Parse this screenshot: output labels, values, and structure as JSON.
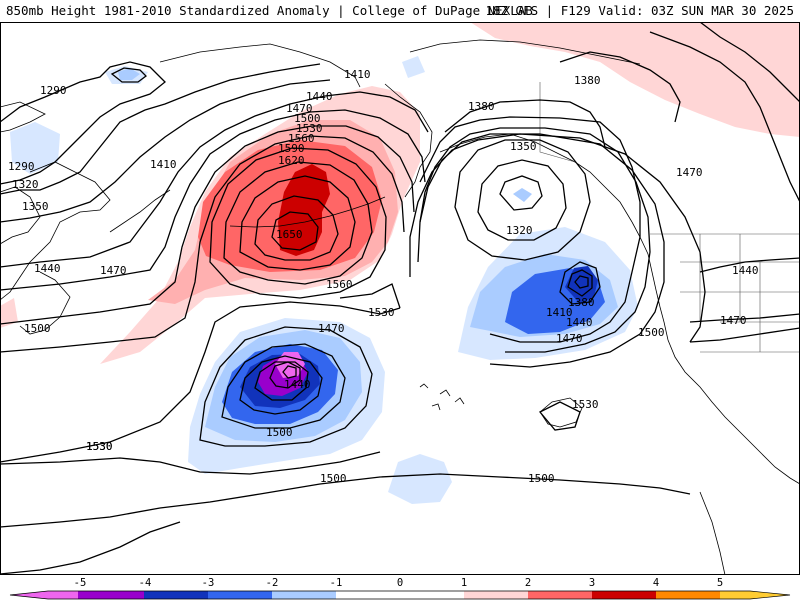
{
  "header": {
    "left": "850mb Height 1981-2010 Standardized Anomaly | College of DuPage NEXLAB",
    "right": "18Z GFS | F129 Valid: 03Z SUN MAR 30 2025"
  },
  "palette": {
    "neg5": "#ee66ee",
    "neg4": "#9900cc",
    "neg3": "#1133bb",
    "neg2": "#3366ee",
    "neg1": "#aaccff",
    "neg05": "#d7e7ff",
    "pos05": "#ffd6d6",
    "pos1": "#ffb0b0",
    "pos2": "#ff6666",
    "pos3": "#cc0000",
    "pos4": "#ff8800",
    "pos5": "#ffcc33",
    "coast": "#000000",
    "contour": "#000000",
    "background": "#ffffff"
  },
  "colorbar": {
    "ticks": [
      "-5",
      "-4",
      "-3",
      "-2",
      "-1",
      "0",
      "1",
      "2",
      "3",
      "4",
      "5"
    ]
  },
  "contour_labels": [
    {
      "id": "l1290a",
      "text": "1290"
    },
    {
      "id": "l1290b",
      "text": "1290"
    },
    {
      "id": "l1320a",
      "text": "1320"
    },
    {
      "id": "l1350a",
      "text": "1350"
    },
    {
      "id": "l1410a",
      "text": "1410"
    },
    {
      "id": "l1440a",
      "text": "1440"
    },
    {
      "id": "l1470a",
      "text": "1470"
    },
    {
      "id": "l1500a",
      "text": "1500"
    },
    {
      "id": "l1530a",
      "text": "1530"
    },
    {
      "id": "l1410b",
      "text": "1410"
    },
    {
      "id": "l1440b",
      "text": "1440"
    },
    {
      "id": "l1470b",
      "text": "1470"
    },
    {
      "id": "l1500b",
      "text": "1500"
    },
    {
      "id": "l1530b",
      "text": "1530"
    },
    {
      "id": "l1560a",
      "text": "1560"
    },
    {
      "id": "l1590a",
      "text": "1590"
    },
    {
      "id": "l1620a",
      "text": "1620"
    },
    {
      "id": "l1650a",
      "text": "1650"
    },
    {
      "id": "l1560b",
      "text": "1560"
    },
    {
      "id": "l1530c",
      "text": "1530"
    },
    {
      "id": "l1470c",
      "text": "1470"
    },
    {
      "id": "l1440c",
      "text": "1440"
    },
    {
      "id": "l1500c",
      "text": "1500"
    },
    {
      "id": "l1530d",
      "text": "1530"
    },
    {
      "id": "l1500d",
      "text": "1500"
    },
    {
      "id": "l1500e",
      "text": "1500"
    },
    {
      "id": "l1380a",
      "text": "1380"
    },
    {
      "id": "l1380b",
      "text": "1380"
    },
    {
      "id": "l1350b",
      "text": "1350"
    },
    {
      "id": "l1320b",
      "text": "1320"
    },
    {
      "id": "l1380c",
      "text": "1380"
    },
    {
      "id": "l1410c",
      "text": "1410"
    },
    {
      "id": "l1440d",
      "text": "1440"
    },
    {
      "id": "l1470d",
      "text": "1470"
    },
    {
      "id": "l1500f",
      "text": "1500"
    },
    {
      "id": "l1530e",
      "text": "1530"
    },
    {
      "id": "l1470e",
      "text": "1470"
    },
    {
      "id": "l1440e",
      "text": "1440"
    },
    {
      "id": "l1470f",
      "text": "1470"
    }
  ]
}
